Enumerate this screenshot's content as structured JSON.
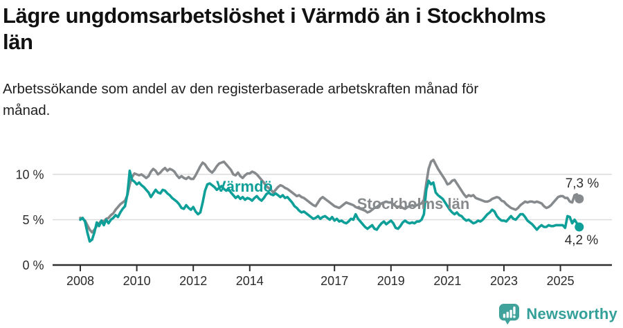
{
  "header": {
    "title": "Lägre ungdomsarbetslöshet i Värmdö än i Stockholms län",
    "title_lines": [
      "Lägre ungdomsarbetslöshet i Värmdö än i Stockholms",
      "län"
    ],
    "subtitle": "Arbetssökande som andel av den registerbaserade arbetskraften månad för månad.",
    "subtitle_lines": [
      "Arbetssökande som andel av den registerbaserade arbetskraften månad för",
      "månad."
    ]
  },
  "footer": {
    "brand": "Newsworthy",
    "logo_icon": "speech-bubble-bar-chart-exclamation-icon",
    "brand_color": "#35a099"
  },
  "chart_data": {
    "type": "line",
    "title": "Lägre ungdomsarbetslöshet i Värmdö än i Stockholms län",
    "xlabel": "",
    "ylabel": "Arbetssökande som andel av den registerbaserade arbetskraften",
    "x_axis": {
      "unit": "month",
      "start_year": 2008,
      "points_per_year": 12,
      "end_point": "2025-09",
      "tick_years": [
        2008,
        2010,
        2012,
        2014,
        2017,
        2019,
        2021,
        2023,
        2025
      ]
    },
    "y_axis": {
      "unit": "%",
      "range": [
        0,
        12.3
      ],
      "ticks": [
        {
          "value": 0,
          "label": "0 %"
        },
        {
          "value": 5,
          "label": "5 %"
        },
        {
          "value": 10,
          "label": "10 %"
        }
      ],
      "gridlines": [
        5,
        10
      ]
    },
    "legend_position": "inline-labels",
    "grid": true,
    "series": [
      {
        "name": "Stockholms län",
        "color": "#868a8d",
        "end_value": 7.3,
        "end_label": "7,3 %",
        "values": [
          5.2,
          5.1,
          4.9,
          4.4,
          3.9,
          3.6,
          3.9,
          4.3,
          4.6,
          4.9,
          4.8,
          5.1,
          5.2,
          5.5,
          5.7,
          6.1,
          6.4,
          6.7,
          6.9,
          7.1,
          7.7,
          8.9,
          9.7,
          10.1,
          10.0,
          9.9,
          10.0,
          9.8,
          9.6,
          9.8,
          10.3,
          10.6,
          10.4,
          10.0,
          10.2,
          10.5,
          10.7,
          10.4,
          10.6,
          10.5,
          10.3,
          9.9,
          9.6,
          9.8,
          9.6,
          9.5,
          9.7,
          9.5,
          9.5,
          9.9,
          10.4,
          10.9,
          11.3,
          11.1,
          10.7,
          10.4,
          10.2,
          10.5,
          10.9,
          11.2,
          11.3,
          11.4,
          11.1,
          10.8,
          10.5,
          10.0,
          9.9,
          10.2,
          9.8,
          9.6,
          9.9,
          10.1,
          10.1,
          10.3,
          10.2,
          10.0,
          9.7,
          9.4,
          9.1,
          8.7,
          8.5,
          8.3,
          8.0,
          8.3,
          8.6,
          8.8,
          8.7,
          8.5,
          8.4,
          8.2,
          8.0,
          7.8,
          7.6,
          7.7,
          7.5,
          7.4,
          7.2,
          7.0,
          6.8,
          6.6,
          6.5,
          6.9,
          7.3,
          7.5,
          7.3,
          7.1,
          6.9,
          6.7,
          6.5,
          6.4,
          6.3,
          6.5,
          6.7,
          6.9,
          6.8,
          6.7,
          6.6,
          6.4,
          6.3,
          6.2,
          6.1,
          6.0,
          5.8,
          5.9,
          6.1,
          6.3,
          6.4,
          6.6,
          6.8,
          6.9,
          7.0,
          6.9,
          6.9,
          6.7,
          6.5,
          6.4,
          6.5,
          6.3,
          6.2,
          6.4,
          6.5,
          6.6,
          6.5,
          6.6,
          6.7,
          6.8,
          7.2,
          9.0,
          10.6,
          11.4,
          11.6,
          11.1,
          10.6,
          10.2,
          9.8,
          9.4,
          8.9,
          9.0,
          9.3,
          9.4,
          9.0,
          8.6,
          8.2,
          7.8,
          7.5,
          7.7,
          7.6,
          7.7,
          7.4,
          7.3,
          7.2,
          7.1,
          7.0,
          7.0,
          7.1,
          7.3,
          7.4,
          7.5,
          7.4,
          7.1,
          7.0,
          6.7,
          6.5,
          6.3,
          6.2,
          6.1,
          6.3,
          6.6,
          6.8,
          7.0,
          6.9,
          7.0,
          7.0,
          6.9,
          7.0,
          6.9,
          6.8,
          6.5,
          6.3,
          6.4,
          6.6,
          6.9,
          7.2,
          7.5,
          7.6,
          7.6,
          7.4,
          7.4,
          7.0,
          6.9,
          7.7,
          7.8,
          7.3
        ]
      },
      {
        "name": "Värmdö",
        "color": "#0d9f98",
        "end_value": 4.2,
        "end_label": "4,2 %",
        "values": [
          5.0,
          5.2,
          4.8,
          3.6,
          2.6,
          2.8,
          3.6,
          4.7,
          4.3,
          4.9,
          4.4,
          5.0,
          4.6,
          5.0,
          5.2,
          5.5,
          5.3,
          5.8,
          6.2,
          6.5,
          7.8,
          10.4,
          9.4,
          9.2,
          8.9,
          9.1,
          8.8,
          8.6,
          8.3,
          8.0,
          7.5,
          7.9,
          8.3,
          8.0,
          7.9,
          8.3,
          8.2,
          7.9,
          7.7,
          7.4,
          7.2,
          7.0,
          6.7,
          6.3,
          6.2,
          6.6,
          6.3,
          6.1,
          6.4,
          5.9,
          5.6,
          5.8,
          6.9,
          8.2,
          8.9,
          9.0,
          8.8,
          8.6,
          8.3,
          8.5,
          8.7,
          8.4,
          8.2,
          8.4,
          8.0,
          7.7,
          7.4,
          7.6,
          7.3,
          7.5,
          7.2,
          7.4,
          7.3,
          7.1,
          7.4,
          7.6,
          7.3,
          7.1,
          7.4,
          7.8,
          8.0,
          7.8,
          7.7,
          7.9,
          7.7,
          7.5,
          7.7,
          7.4,
          7.5,
          7.2,
          6.9,
          6.5,
          6.3,
          6.0,
          5.8,
          5.9,
          5.7,
          5.5,
          5.3,
          5.1,
          5.2,
          5.4,
          5.1,
          5.3,
          5.4,
          5.2,
          5.0,
          5.3,
          4.9,
          5.1,
          4.8,
          4.9,
          4.7,
          4.6,
          4.8,
          5.1,
          5.0,
          5.6,
          5.1,
          4.8,
          4.5,
          4.2,
          4.0,
          4.2,
          4.4,
          4.0,
          3.9,
          4.3,
          4.6,
          4.8,
          4.5,
          4.7,
          4.9,
          4.6,
          4.1,
          4.0,
          4.3,
          4.7,
          4.9,
          4.7,
          4.6,
          4.7,
          4.6,
          4.8,
          4.8,
          5.0,
          5.6,
          8.3,
          9.3,
          8.9,
          9.1,
          8.0,
          7.7,
          7.5,
          7.3,
          6.9,
          6.5,
          6.1,
          5.8,
          5.6,
          5.8,
          5.5,
          5.4,
          5.1,
          4.9,
          5.0,
          4.8,
          4.6,
          4.7,
          4.9,
          4.8,
          5.0,
          5.3,
          5.6,
          5.8,
          6.1,
          5.9,
          5.4,
          5.1,
          4.9,
          4.9,
          4.8,
          5.1,
          5.4,
          5.1,
          5.0,
          5.3,
          5.6,
          5.6,
          5.3,
          4.9,
          4.7,
          4.5,
          4.2,
          3.9,
          4.2,
          4.4,
          4.2,
          4.2,
          4.4,
          4.3,
          4.3,
          4.4,
          4.4,
          4.4,
          4.4,
          4.1,
          5.4,
          5.3,
          4.6,
          5.0,
          4.6,
          4.2
        ]
      }
    ]
  }
}
